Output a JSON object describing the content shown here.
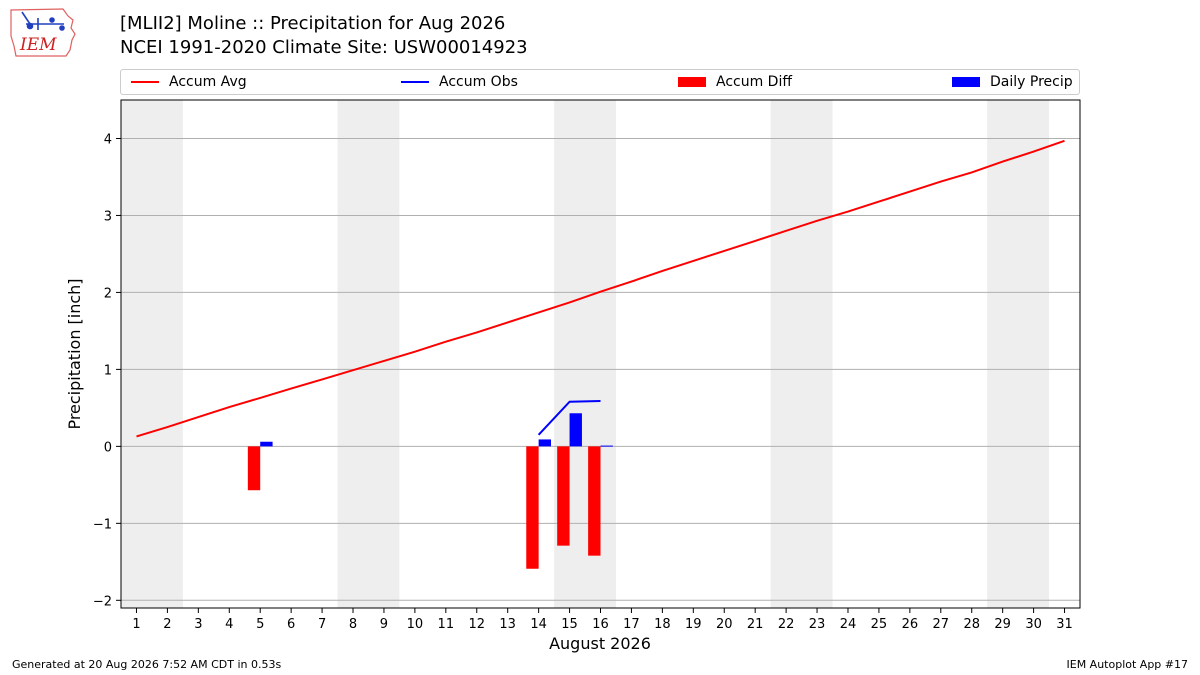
{
  "logo": {
    "text": "IEM",
    "icon": "iem-iowa-logo-icon"
  },
  "title_line1": "[MLII2] Moline :: Precipitation for Aug 2026",
  "title_line2": "NCEI 1991-2020 Climate Site: USW00014923",
  "legend": [
    {
      "label": "Accum Avg",
      "kind": "line",
      "color": "#ff0000"
    },
    {
      "label": "Accum Obs",
      "kind": "line",
      "color": "#0000ff"
    },
    {
      "label": "Accum Diff",
      "kind": "box",
      "color": "#ff0000"
    },
    {
      "label": "Daily Precip",
      "kind": "box",
      "color": "#0000ff"
    }
  ],
  "footer": {
    "left": "Generated at 20 Aug 2026 7:52 AM CDT in 0.53s",
    "right": "IEM Autoplot App #17"
  },
  "chart_data": {
    "type": "bar",
    "xlabel": "August 2026",
    "ylabel": "Precipitation [inch]",
    "ylim": [
      -2.1,
      4.5
    ],
    "xlim": [
      0.5,
      31.5
    ],
    "x_ticks": [
      "1",
      "2",
      "3",
      "4",
      "5",
      "6",
      "7",
      "8",
      "9",
      "10",
      "11",
      "12",
      "13",
      "14",
      "15",
      "16",
      "17",
      "18",
      "19",
      "20",
      "21",
      "22",
      "23",
      "24",
      "25",
      "26",
      "27",
      "28",
      "29",
      "30",
      "31"
    ],
    "y_ticks": [
      -2,
      -1,
      0,
      1,
      2,
      3,
      4
    ],
    "y_tick_labels": [
      "−2",
      "−1",
      "0",
      "1",
      "2",
      "3",
      "4"
    ],
    "grid": "horizontal",
    "weekend_shading": [
      [
        1,
        2
      ],
      [
        8,
        9
      ],
      [
        15,
        16
      ],
      [
        22,
        23
      ],
      [
        29,
        30
      ]
    ],
    "series": [
      {
        "name": "Accum Avg",
        "type": "line",
        "color": "#ff0000",
        "x": [
          1,
          2,
          3,
          4,
          5,
          6,
          7,
          8,
          9,
          10,
          11,
          12,
          13,
          14,
          15,
          16,
          17,
          18,
          19,
          20,
          21,
          22,
          23,
          24,
          25,
          26,
          27,
          28,
          29,
          30,
          31
        ],
        "values": [
          0.13,
          0.25,
          0.38,
          0.51,
          0.63,
          0.75,
          0.87,
          0.99,
          1.11,
          1.23,
          1.36,
          1.48,
          1.61,
          1.74,
          1.87,
          2.01,
          2.14,
          2.28,
          2.41,
          2.54,
          2.67,
          2.8,
          2.93,
          3.05,
          3.18,
          3.31,
          3.44,
          3.56,
          3.7,
          3.83,
          3.97
        ]
      },
      {
        "name": "Accum Obs",
        "type": "line",
        "color": "#0000ff",
        "x": [
          14,
          15,
          16
        ],
        "values": [
          0.15,
          0.58,
          0.59
        ]
      },
      {
        "name": "Accum Diff",
        "type": "bar",
        "color": "#ff0000",
        "x": [
          5,
          14,
          15,
          16
        ],
        "values": [
          -0.57,
          -1.59,
          -1.29,
          -1.42
        ]
      },
      {
        "name": "Daily Precip",
        "type": "bar",
        "color": "#0000ff",
        "x": [
          5,
          14,
          15,
          16
        ],
        "values": [
          0.06,
          0.09,
          0.43,
          0.01
        ]
      }
    ]
  }
}
